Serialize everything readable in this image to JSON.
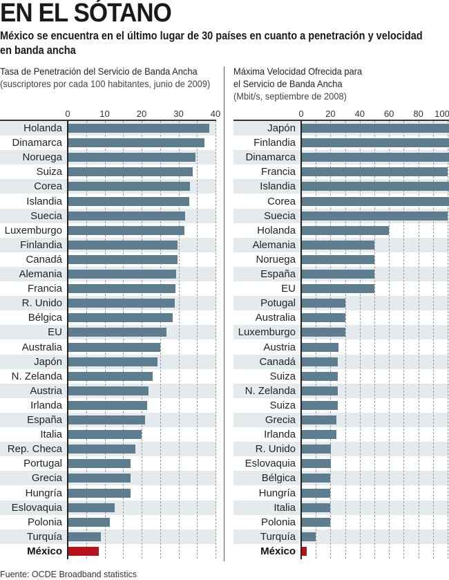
{
  "header": {
    "title": "EN EL SÓTANO",
    "subtitle": "México se encuentra en el último lugar de 30 países en cuanto a penetración y velocidad en banda ancha"
  },
  "source": "Fuente: OCDE Broadband statistics",
  "colors": {
    "bar": "#5e7d8e",
    "highlight": "#b5121b",
    "band": "#e5eaed"
  },
  "chart_data": [
    {
      "type": "bar",
      "orientation": "horizontal",
      "title": "Tasa de Penetración del Servicio de Banda Ancha",
      "title_note": "(suscriptores por cada 100 habitantes, junio de 2009)",
      "xlim": [
        0,
        40
      ],
      "ticks": [
        0,
        10,
        20,
        30,
        40
      ],
      "grid": true,
      "highlight": "México",
      "categories": [
        "Holanda",
        "Dinamarca",
        "Noruega",
        "Suiza",
        "Corea",
        "Islandia",
        "Suecia",
        "Luxemburgo",
        "Finlandia",
        "Canadá",
        "Alemania",
        "Francia",
        "R. Unido",
        "Bélgica",
        "EU",
        "Australia",
        "Japón",
        "N. Zelanda",
        "Austria",
        "Irlanda",
        "España",
        "Italia",
        "Rep. Checa",
        "Portugal",
        "Grecia",
        "Hungría",
        "Eslovaquia",
        "Polonia",
        "Turquía",
        "México"
      ],
      "values": [
        38.3,
        37.1,
        34.6,
        33.8,
        33.0,
        32.9,
        31.7,
        31.6,
        29.8,
        29.8,
        29.4,
        29.2,
        29.0,
        28.5,
        26.7,
        25.1,
        24.3,
        23.0,
        21.9,
        21.5,
        20.9,
        20.0,
        18.3,
        17.1,
        17.0,
        17.0,
        12.7,
        11.4,
        8.9,
        8.4
      ]
    },
    {
      "type": "bar",
      "orientation": "horizontal",
      "title": "Máxima Velocidad Ofrecida para el Servicio de Banda Ancha",
      "title_note": "(Mbit/s, septiembre de 2008)",
      "xlim": [
        0,
        100
      ],
      "ticks": [
        0,
        20,
        40,
        60,
        80,
        100
      ],
      "grid": true,
      "highlight": "México",
      "categories": [
        "Japón",
        "Finlandia",
        "Dinamarca",
        "Francia",
        "Islandia",
        "Corea",
        "Suecia",
        "Holanda",
        "Alemania",
        "Noruega",
        "España",
        "EU",
        "Potugal",
        "Australia",
        "Luxemburgo",
        "Austria",
        "Canadá",
        "Suiza",
        "N. Zelanda",
        "Suiza",
        "Grecia",
        "Irlanda",
        "R. Unido",
        "Eslovaquia",
        "Bélgica",
        "Hungría",
        "Italia",
        "Polonia",
        "Turquía",
        "México"
      ],
      "values": [
        102,
        102,
        102,
        100,
        102,
        102,
        100,
        60,
        50,
        50,
        50,
        50,
        30,
        30,
        30,
        25.7,
        25,
        25,
        25,
        25,
        24,
        24,
        20.5,
        20.5,
        20,
        20,
        20,
        20,
        10,
        3.6
      ]
    }
  ]
}
